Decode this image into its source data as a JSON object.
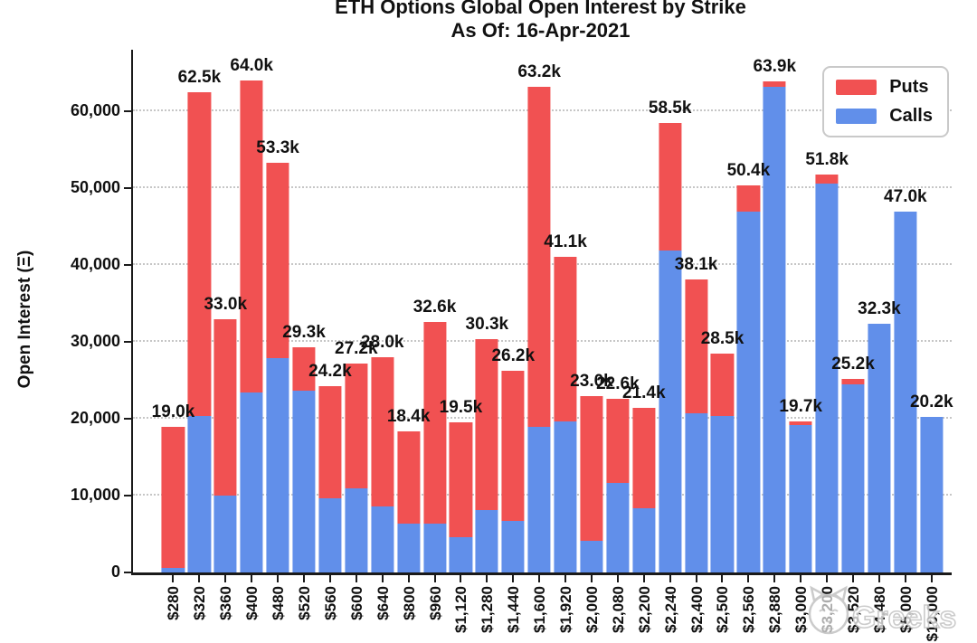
{
  "title": {
    "line1": "ETH Options Global Open Interest by Strike",
    "line2": "As Of: 16-Apr-2021"
  },
  "y_axis": {
    "title": "Open Interest (Ξ)",
    "tick_labels": [
      "0",
      "10,000",
      "20,000",
      "30,000",
      "40,000",
      "50,000",
      "60,000"
    ],
    "tick_values_k": [
      0,
      10,
      20,
      30,
      40,
      50,
      60
    ]
  },
  "legend": {
    "items": [
      {
        "label": "Puts",
        "color": "#F15152"
      },
      {
        "label": "Calls",
        "color": "#618FEA"
      }
    ]
  },
  "watermark": {
    "icon": "cat-logo",
    "text": "Greeks"
  },
  "chart_data": {
    "type": "bar",
    "stacked": true,
    "title": "ETH Options Global Open Interest by Strike",
    "subtitle": "As Of: 16-Apr-2021",
    "xlabel": "Strike",
    "ylabel": "Open Interest (Ξ)",
    "ylim": [
      0,
      68000
    ],
    "grid": "horizontal-dotted",
    "legend_position": "upper right",
    "categories": [
      "$280",
      "$320",
      "$360",
      "$400",
      "$480",
      "$520",
      "$560",
      "$600",
      "$640",
      "$800",
      "$960",
      "$1,120",
      "$1,280",
      "$1,440",
      "$1,600",
      "$1,920",
      "$2,000",
      "$2,080",
      "$2,200",
      "$2,240",
      "$2,400",
      "$2,500",
      "$2,560",
      "$2,880",
      "$3,000",
      "$3,200",
      "$3,520",
      "$4,480",
      "$5,000",
      "$10,000"
    ],
    "series": [
      {
        "name": "Puts",
        "color": "#F15152",
        "values_k": [
          18.4,
          42.1,
          23.0,
          40.6,
          25.4,
          5.6,
          14.5,
          16.2,
          19.4,
          12.1,
          26.2,
          14.9,
          22.2,
          19.5,
          44.3,
          21.5,
          18.9,
          11.0,
          13.1,
          16.6,
          17.4,
          8.1,
          3.4,
          0.7,
          0.5,
          1.2,
          0.7,
          0,
          0,
          0
        ]
      },
      {
        "name": "Calls",
        "color": "#618FEA",
        "values_k": [
          0.6,
          20.4,
          10.0,
          23.4,
          27.9,
          23.7,
          9.7,
          11.0,
          8.6,
          6.3,
          6.4,
          4.6,
          8.1,
          6.7,
          18.9,
          19.6,
          4.1,
          11.6,
          8.3,
          41.9,
          20.7,
          20.4,
          47.0,
          63.2,
          19.2,
          50.6,
          24.5,
          32.3,
          47.0,
          20.2
        ]
      }
    ],
    "total_labels": [
      "19.0k",
      "62.5k",
      "33.0k",
      "64.0k",
      "53.3k",
      "29.3k",
      "24.2k",
      "27.2k",
      "28.0k",
      "18.4k",
      "32.6k",
      "19.5k",
      "30.3k",
      "26.2k",
      "63.2k",
      "41.1k",
      "23.0k",
      "22.6k",
      "21.4k",
      "58.5k",
      "38.1k",
      "28.5k",
      "50.4k",
      "63.9k",
      "19.7k",
      "51.8k",
      "25.2k",
      "32.3k",
      "47.0k",
      "20.2k"
    ]
  }
}
